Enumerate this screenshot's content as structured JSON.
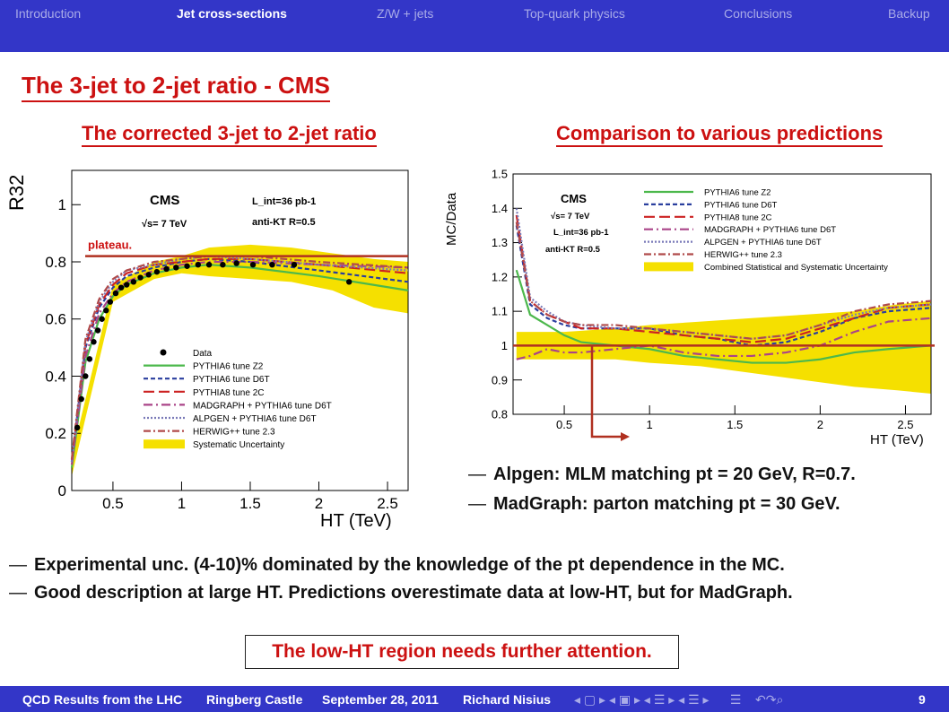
{
  "nav": {
    "items": [
      "Introduction",
      "Jet cross-sections",
      "Z/W + jets",
      "Top-quark physics",
      "Conclusions",
      "Backup"
    ],
    "active_index": 1
  },
  "slide_title": "The 3-jet to 2-jet ratio - CMS",
  "left_subtitle": "The corrected 3-jet to 2-jet ratio",
  "right_subtitle": "Comparison to various predictions",
  "chart_data": [
    {
      "type": "line",
      "ylabel": "R32",
      "xlabel": "HT (TeV)",
      "xlim": [
        0.2,
        2.65
      ],
      "ylim": [
        0,
        1.12
      ],
      "xticks": [
        "0.5",
        "1",
        "1.5",
        "2",
        "2.5"
      ],
      "yticks": [
        "0",
        "0.2",
        "0.4",
        "0.6",
        "0.8",
        "1"
      ],
      "cms_label": "CMS",
      "energy_label": "√s= 7 TeV",
      "lumi_label": "L_int=36 pb-1",
      "algo_label": "anti-KT R=0.5",
      "plateau_label": "plateau.",
      "plateau_value": 0.82,
      "legend": [
        "Data",
        "PYTHIA6 tune Z2",
        "PYTHIA6 tune D6T",
        "PYTHIA8 tune 2C",
        "MADGRAPH + PYTHIA6 tune D6T",
        "ALPGEN + PYTHIA6 tune D6T",
        "HERWIG++ tune 2.3",
        "Systematic Uncertainty"
      ],
      "data_points": {
        "x": [
          0.24,
          0.27,
          0.3,
          0.33,
          0.36,
          0.39,
          0.42,
          0.45,
          0.48,
          0.52,
          0.56,
          0.6,
          0.65,
          0.7,
          0.76,
          0.82,
          0.89,
          0.96,
          1.04,
          1.12,
          1.2,
          1.3,
          1.4,
          1.52,
          1.66,
          1.82,
          2.22
        ],
        "y": [
          0.22,
          0.32,
          0.4,
          0.46,
          0.52,
          0.56,
          0.6,
          0.63,
          0.66,
          0.69,
          0.71,
          0.72,
          0.73,
          0.745,
          0.755,
          0.765,
          0.775,
          0.78,
          0.785,
          0.79,
          0.79,
          0.79,
          0.795,
          0.79,
          0.79,
          0.79,
          0.73
        ]
      },
      "series": [
        {
          "name": "PYTHIA6 tune Z2",
          "color": "#4cb84c",
          "x": [
            0.2,
            0.3,
            0.4,
            0.5,
            0.6,
            0.8,
            1.0,
            1.2,
            1.5,
            2.0,
            2.65
          ],
          "y": [
            0.08,
            0.45,
            0.6,
            0.68,
            0.72,
            0.76,
            0.78,
            0.79,
            0.78,
            0.75,
            0.7
          ]
        },
        {
          "name": "PYTHIA6 tune D6T",
          "color": "#2a3f9e",
          "x": [
            0.2,
            0.3,
            0.4,
            0.5,
            0.6,
            0.8,
            1.0,
            1.2,
            1.5,
            2.0,
            2.65
          ],
          "y": [
            0.1,
            0.5,
            0.64,
            0.71,
            0.75,
            0.78,
            0.8,
            0.81,
            0.8,
            0.77,
            0.73
          ]
        },
        {
          "name": "PYTHIA8 tune 2C",
          "color": "#cc2222",
          "x": [
            0.2,
            0.3,
            0.4,
            0.5,
            0.6,
            0.8,
            1.0,
            1.2,
            1.5,
            2.0,
            2.65
          ],
          "y": [
            0.1,
            0.51,
            0.65,
            0.72,
            0.76,
            0.79,
            0.8,
            0.81,
            0.81,
            0.79,
            0.76
          ]
        },
        {
          "name": "MADGRAPH + PYTHIA6 tune D6T",
          "color": "#aa4488",
          "x": [
            0.2,
            0.3,
            0.4,
            0.5,
            0.6,
            0.8,
            1.0,
            1.2,
            1.5,
            2.0,
            2.65
          ],
          "y": [
            0.09,
            0.47,
            0.62,
            0.69,
            0.73,
            0.77,
            0.79,
            0.8,
            0.8,
            0.79,
            0.78
          ]
        },
        {
          "name": "ALPGEN + PYTHIA6 tune D6T",
          "color": "#7a7ab8",
          "x": [
            0.2,
            0.3,
            0.4,
            0.5,
            0.6,
            0.8,
            1.0,
            1.2,
            1.5,
            2.0,
            2.65
          ],
          "y": [
            0.1,
            0.52,
            0.66,
            0.73,
            0.77,
            0.79,
            0.81,
            0.82,
            0.81,
            0.79,
            0.77
          ]
        },
        {
          "name": "HERWIG++ tune 2.3",
          "color": "#b04a4a",
          "x": [
            0.2,
            0.3,
            0.4,
            0.5,
            0.6,
            0.8,
            1.0,
            1.2,
            1.5,
            2.0,
            2.65
          ],
          "y": [
            0.11,
            0.53,
            0.67,
            0.74,
            0.77,
            0.8,
            0.81,
            0.82,
            0.82,
            0.8,
            0.78
          ]
        }
      ],
      "band": {
        "x": [
          0.2,
          0.5,
          0.8,
          1.0,
          1.2,
          1.5,
          1.8,
          2.1,
          2.4,
          2.65
        ],
        "low": [
          0.05,
          0.66,
          0.74,
          0.76,
          0.75,
          0.74,
          0.73,
          0.7,
          0.64,
          0.62
        ],
        "high": [
          0.12,
          0.72,
          0.8,
          0.82,
          0.85,
          0.86,
          0.85,
          0.83,
          0.81,
          0.8
        ]
      }
    },
    {
      "type": "line",
      "ylabel": "MC/Data",
      "xlabel": "HT (TeV)",
      "xlim": [
        0.2,
        2.65
      ],
      "ylim": [
        0.8,
        1.5
      ],
      "xticks": [
        "0.5",
        "1",
        "1.5",
        "2",
        "2.5"
      ],
      "yticks": [
        "0.8",
        "0.9",
        "1",
        "1.1",
        "1.2",
        "1.3",
        "1.4",
        "1.5"
      ],
      "cms_label": "CMS",
      "energy_label": "√s= 7 TeV",
      "lumi_label": "L_int=36 pb-1",
      "algo_label": "anti-KT R=0.5",
      "reference_value": 1,
      "legend": [
        "PYTHIA6 tune Z2",
        "PYTHIA6 tune D6T",
        "PYTHIA8 tune 2C",
        "MADGRAPH + PYTHIA6 tune D6T",
        "ALPGEN + PYTHIA6 tune D6T",
        "HERWIG++ tune 2.3",
        "Combined Statistical and Systematic Uncertainty"
      ],
      "series": [
        {
          "name": "PYTHIA6 tune Z2",
          "color": "#4cb84c",
          "x": [
            0.22,
            0.3,
            0.4,
            0.5,
            0.6,
            0.8,
            1.0,
            1.2,
            1.4,
            1.6,
            1.8,
            2.0,
            2.2,
            2.4,
            2.65
          ],
          "y": [
            1.22,
            1.09,
            1.06,
            1.03,
            1.01,
            1.0,
            0.99,
            0.97,
            0.96,
            0.95,
            0.95,
            0.96,
            0.98,
            0.99,
            1.0
          ]
        },
        {
          "name": "PYTHIA6 tune D6T",
          "color": "#2a3f9e",
          "x": [
            0.22,
            0.3,
            0.4,
            0.5,
            0.6,
            0.8,
            1.0,
            1.2,
            1.4,
            1.6,
            1.8,
            2.0,
            2.2,
            2.4,
            2.65
          ],
          "y": [
            1.35,
            1.12,
            1.08,
            1.06,
            1.05,
            1.05,
            1.05,
            1.03,
            1.02,
            1.0,
            1.01,
            1.04,
            1.08,
            1.1,
            1.11
          ]
        },
        {
          "name": "PYTHIA8 tune 2C",
          "color": "#cc2222",
          "x": [
            0.22,
            0.3,
            0.4,
            0.5,
            0.6,
            0.8,
            1.0,
            1.2,
            1.4,
            1.6,
            1.8,
            2.0,
            2.2,
            2.4,
            2.65
          ],
          "y": [
            1.38,
            1.13,
            1.09,
            1.07,
            1.05,
            1.05,
            1.04,
            1.03,
            1.02,
            1.01,
            1.02,
            1.05,
            1.08,
            1.11,
            1.12
          ]
        },
        {
          "name": "MADGRAPH + PYTHIA6 tune D6T",
          "color": "#aa4488",
          "x": [
            0.22,
            0.3,
            0.4,
            0.5,
            0.6,
            0.8,
            1.0,
            1.2,
            1.4,
            1.6,
            1.8,
            2.0,
            2.2,
            2.4,
            2.65
          ],
          "y": [
            0.96,
            0.97,
            0.99,
            0.98,
            0.98,
            0.99,
            1.0,
            0.98,
            0.97,
            0.97,
            0.98,
            1.0,
            1.04,
            1.07,
            1.08
          ]
        },
        {
          "name": "ALPGEN + PYTHIA6 tune D6T",
          "color": "#7a7ab8",
          "x": [
            0.22,
            0.3,
            0.4,
            0.5,
            0.6,
            0.8,
            1.0,
            1.2,
            1.4,
            1.6,
            1.8,
            2.0,
            2.2,
            2.4,
            2.65
          ],
          "y": [
            1.4,
            1.14,
            1.1,
            1.07,
            1.06,
            1.05,
            1.05,
            1.04,
            1.03,
            1.02,
            1.03,
            1.06,
            1.09,
            1.11,
            1.12
          ]
        },
        {
          "name": "HERWIG++ tune 2.3",
          "color": "#b04a4a",
          "x": [
            0.22,
            0.3,
            0.4,
            0.5,
            0.6,
            0.8,
            1.0,
            1.2,
            1.4,
            1.6,
            1.8,
            2.0,
            2.2,
            2.4,
            2.65
          ],
          "y": [
            1.36,
            1.13,
            1.09,
            1.07,
            1.06,
            1.06,
            1.05,
            1.04,
            1.03,
            1.02,
            1.03,
            1.06,
            1.1,
            1.12,
            1.13
          ]
        }
      ],
      "band": {
        "x": [
          0.22,
          0.5,
          0.8,
          1.0,
          1.3,
          1.6,
          1.9,
          2.2,
          2.45,
          2.65
        ],
        "low": [
          0.96,
          0.96,
          0.96,
          0.95,
          0.94,
          0.92,
          0.9,
          0.88,
          0.87,
          0.86
        ],
        "high": [
          1.04,
          1.04,
          1.05,
          1.06,
          1.07,
          1.08,
          1.09,
          1.1,
          1.12,
          1.13
        ]
      }
    }
  ],
  "right_bullets": [
    "Alpgen: MLM matching pt = 20 GeV, R=0.7.",
    "MadGraph: parton matching pt = 30 GeV."
  ],
  "bottom_bullets": [
    "Experimental unc. (4-10)% dominated by the knowledge of the pt dependence in the MC.",
    "Good description at large HT. Predictions overestimate data at low-HT, but for MadGraph."
  ],
  "boxed_note": "The low-HT region needs further attention.",
  "footer": {
    "talk": "QCD Results from the LHC",
    "venue": "Ringberg Castle",
    "date": "September 28, 2011",
    "author": "Richard Nisius",
    "page": "9"
  },
  "colors": {
    "nav_bg": "#3336c8",
    "accent_red": "#cc1111",
    "band_yellow": "#f5e000"
  }
}
